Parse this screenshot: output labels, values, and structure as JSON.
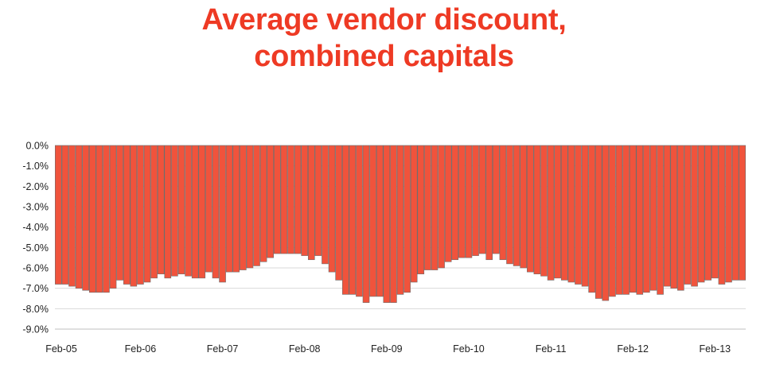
{
  "chart_data": {
    "type": "bar",
    "title_lines": [
      "Average vendor discount,",
      "combined capitals"
    ],
    "xlabel": "",
    "ylabel": "",
    "ylim": [
      -9.0,
      0.0
    ],
    "yticks": [
      0.0,
      -1.0,
      -2.0,
      -3.0,
      -4.0,
      -5.0,
      -6.0,
      -7.0,
      -8.0,
      -9.0
    ],
    "ytick_labels": [
      "0.0%",
      "-1.0%",
      "-2.0%",
      "-3.0%",
      "-4.0%",
      "-5.0%",
      "-6.0%",
      "-7.0%",
      "-8.0%",
      "-9.0%"
    ],
    "xtick_labels": [
      "Feb-05",
      "Feb-06",
      "Feb-07",
      "Feb-08",
      "Feb-09",
      "Feb-10",
      "Feb-11",
      "Feb-12",
      "Feb-13"
    ],
    "xtick_month_index": [
      0,
      12,
      24,
      36,
      48,
      60,
      72,
      84,
      96
    ],
    "grid": "horizontal",
    "colors": {
      "bar_fill": "#f0533c",
      "bar_edge": "#6e6e6e",
      "title": "#ee3a24",
      "grid": "#d9d9d9"
    },
    "series": [
      {
        "values": [
          -6.8,
          -6.8,
          -6.9,
          -7.0,
          -7.1,
          -7.2,
          -7.2,
          -7.2,
          -7.0,
          -6.6,
          -6.8,
          -6.9,
          -6.8,
          -6.7,
          -6.5,
          -6.3,
          -6.5,
          -6.4,
          -6.3,
          -6.4,
          -6.5,
          -6.5,
          -6.2,
          -6.5,
          -6.7,
          -6.2,
          -6.2,
          -6.1,
          -6.0,
          -5.9,
          -5.7,
          -5.5,
          -5.3,
          -5.3,
          -5.3,
          -5.3,
          -5.4,
          -5.6,
          -5.4,
          -5.8,
          -6.2,
          -6.6,
          -7.3,
          -7.3,
          -7.4,
          -7.7,
          -7.4,
          -7.4,
          -7.7,
          -7.7,
          -7.3,
          -7.2,
          -6.7,
          -6.3,
          -6.1,
          -6.1,
          -6.0,
          -5.7,
          -5.6,
          -5.5,
          -5.5,
          -5.4,
          -5.3,
          -5.6,
          -5.3,
          -5.6,
          -5.8,
          -5.9,
          -6.0,
          -6.2,
          -6.3,
          -6.4,
          -6.6,
          -6.5,
          -6.6,
          -6.7,
          -6.8,
          -6.9,
          -7.2,
          -7.5,
          -7.6,
          -7.4,
          -7.3,
          -7.3,
          -7.2,
          -7.3,
          -7.2,
          -7.1,
          -7.3,
          -6.9,
          -7.0,
          -7.1,
          -6.8,
          -6.9,
          -6.7,
          -6.6,
          -6.5,
          -6.8,
          -6.7,
          -6.6,
          -6.6
        ]
      }
    ]
  }
}
